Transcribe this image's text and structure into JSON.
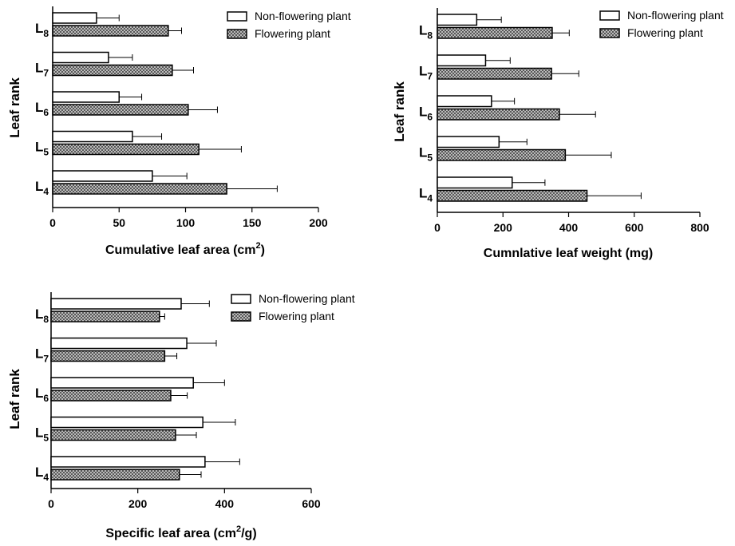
{
  "colors": {
    "nonflowering_fill": "#ffffff",
    "flowering_pattern": "crosshatch-gray",
    "stroke": "#000000"
  },
  "chart_data": [
    {
      "type": "bar",
      "orientation": "horizontal",
      "ylabel": "Leaf rank",
      "xlabel": "Cumulative leaf area (cm",
      "xlabel_sup": "2",
      "xlabel_end": ")",
      "xlim": [
        0,
        200
      ],
      "xticks": [
        "0",
        "50",
        "100",
        "150",
        "200"
      ],
      "categories": [
        {
          "main": "L",
          "sub": "8"
        },
        {
          "main": "L",
          "sub": "7"
        },
        {
          "main": "L",
          "sub": "6"
        },
        {
          "main": "L",
          "sub": "5"
        },
        {
          "main": "L",
          "sub": "4"
        }
      ],
      "legend_position": "top-right",
      "series": [
        {
          "name": "Non-flowering plant",
          "values": [
            33,
            42,
            50,
            60,
            75
          ],
          "errors": [
            17,
            18,
            17,
            22,
            26
          ]
        },
        {
          "name": "Flowering plant",
          "values": [
            87,
            90,
            102,
            110,
            131
          ],
          "errors": [
            10,
            16,
            22,
            32,
            38
          ]
        }
      ]
    },
    {
      "type": "bar",
      "orientation": "horizontal",
      "ylabel": "Leaf rank",
      "xlabel": "Cumnlative leaf weight (mg)",
      "xlim": [
        0,
        800
      ],
      "xticks": [
        "0",
        "200",
        "400",
        "600",
        "800"
      ],
      "categories": [
        {
          "main": "L",
          "sub": "8"
        },
        {
          "main": "L",
          "sub": "7"
        },
        {
          "main": "L",
          "sub": "6"
        },
        {
          "main": "L",
          "sub": "5"
        },
        {
          "main": "L",
          "sub": "4"
        }
      ],
      "legend_position": "top-right",
      "series": [
        {
          "name": "Non-flowering plant",
          "values": [
            120,
            147,
            165,
            188,
            228
          ],
          "errors": [
            75,
            75,
            70,
            85,
            100
          ]
        },
        {
          "name": "Flowering plant",
          "values": [
            350,
            348,
            372,
            390,
            456
          ],
          "errors": [
            52,
            83,
            110,
            140,
            165
          ]
        }
      ]
    },
    {
      "type": "bar",
      "orientation": "horizontal",
      "ylabel": "Leaf rank",
      "xlabel": "Specific leaf area (cm",
      "xlabel_sup": "2",
      "xlabel_end": "/g)",
      "xlim": [
        0,
        600
      ],
      "xticks": [
        "0",
        "200",
        "400",
        "600"
      ],
      "categories": [
        {
          "main": "L",
          "sub": "8"
        },
        {
          "main": "L",
          "sub": "7"
        },
        {
          "main": "L",
          "sub": "6"
        },
        {
          "main": "L",
          "sub": "5"
        },
        {
          "main": "L",
          "sub": "4"
        }
      ],
      "legend_position": "top-right",
      "series": [
        {
          "name": "Non-flowering plant",
          "values": [
            300,
            313,
            328,
            350,
            355
          ],
          "errors": [
            65,
            68,
            72,
            75,
            80
          ]
        },
        {
          "name": "Flowering plant",
          "values": [
            250,
            262,
            276,
            287,
            296
          ],
          "errors": [
            12,
            28,
            38,
            48,
            50
          ]
        }
      ]
    }
  ]
}
